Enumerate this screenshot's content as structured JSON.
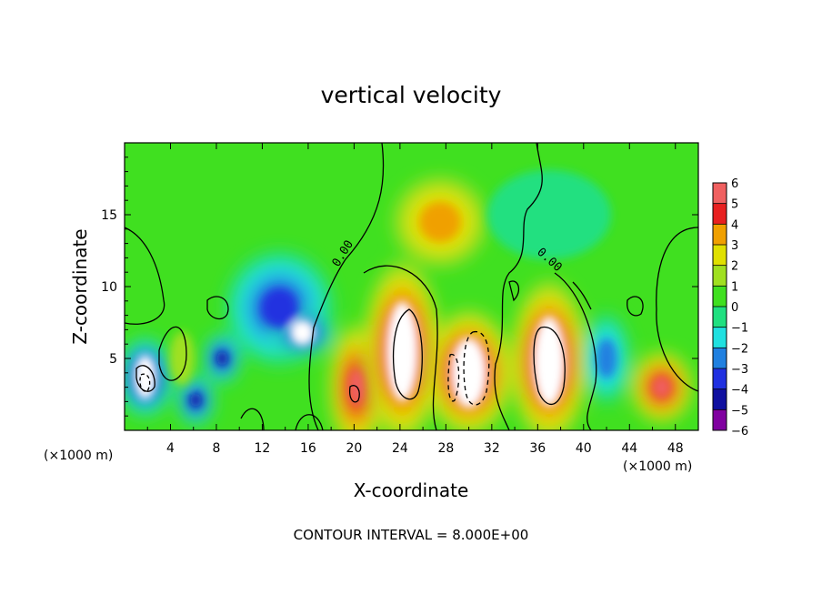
{
  "chart_data": {
    "type": "heatmap",
    "title": "vertical velocity",
    "xlabel": "X-coordinate",
    "ylabel": "Z-coordinate",
    "x_unit": "(×1000 m)",
    "x_unit_right": "(×1000 m)",
    "note": "CONTOUR INTERVAL = 8.000E+00",
    "xlim": [
      0,
      50
    ],
    "ylim": [
      0,
      20
    ],
    "x_ticks": [
      4,
      8,
      12,
      16,
      20,
      24,
      28,
      32,
      36,
      40,
      44,
      48
    ],
    "y_ticks": [
      5,
      10,
      15
    ],
    "contour_labels": [
      "0.00",
      "0.00"
    ],
    "colorbar": {
      "levels": [
        6,
        5,
        4,
        3,
        2,
        1,
        0,
        -1,
        -2,
        -3,
        -4,
        -5,
        -6
      ],
      "colors": [
        "#f2a8a8",
        "#f06060",
        "#e82020",
        "#f0a000",
        "#e0e000",
        "#a0e020",
        "#40e020",
        "#20e080",
        "#20e0e0",
        "#2080e0",
        "#2030e0",
        "#1010a0",
        "#8000a0"
      ]
    },
    "features": [
      {
        "x": 1.8,
        "z": 3.7,
        "rx": 1.8,
        "rz": 2.2,
        "value": -6
      },
      {
        "x": 6.2,
        "z": 2.1,
        "rx": 1.2,
        "rz": 1.4,
        "value": -5
      },
      {
        "x": 8.5,
        "z": 5.0,
        "rx": 1.2,
        "rz": 1.4,
        "value": -5
      },
      {
        "x": 13.5,
        "z": 8.5,
        "rx": 3.5,
        "rz": 3.2,
        "value": -4
      },
      {
        "x": 15.5,
        "z": 6.8,
        "rx": 2.0,
        "rz": 1.3,
        "value": -6
      },
      {
        "x": 20.2,
        "z": 3.0,
        "rx": 1.8,
        "rz": 3.5,
        "value": 5
      },
      {
        "x": 24.2,
        "z": 5.5,
        "rx": 2.5,
        "rz": 5.0,
        "value": 6
      },
      {
        "x": 30.0,
        "z": 4.0,
        "rx": 2.8,
        "rz": 3.5,
        "value": 6
      },
      {
        "x": 37.0,
        "z": 4.8,
        "rx": 2.5,
        "rz": 4.5,
        "value": 6
      },
      {
        "x": 42.0,
        "z": 5.0,
        "rx": 1.5,
        "rz": 2.5,
        "value": -3
      },
      {
        "x": 46.8,
        "z": 3.0,
        "rx": 2.0,
        "rz": 2.0,
        "value": 5
      },
      {
        "x": 27.5,
        "z": 14.5,
        "rx": 3.0,
        "rz": 2.5,
        "value": 3
      },
      {
        "x": 5.0,
        "z": 5.0,
        "rx": 0.8,
        "rz": 1.5,
        "value": 1
      },
      {
        "x": 37.0,
        "z": 15.0,
        "rx": 4.0,
        "rz": 2.5,
        "value": -1
      }
    ]
  }
}
